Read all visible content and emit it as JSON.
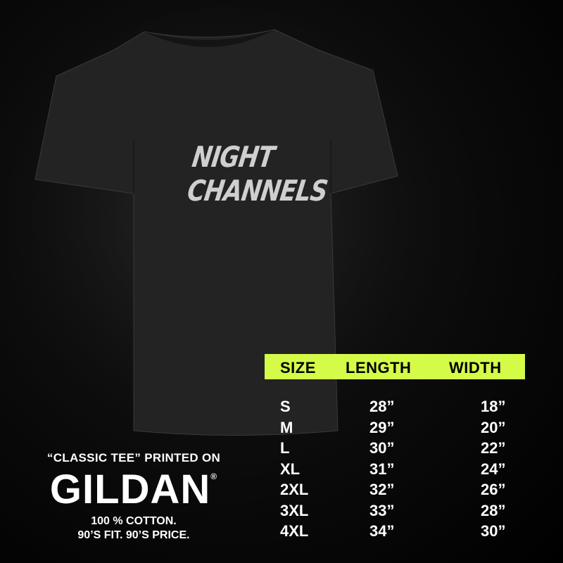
{
  "product": {
    "brand_print": "NIGHT CHANNELS",
    "shirt_color": "#222222"
  },
  "accent_color": "#d5fb49",
  "size_chart": {
    "headers": [
      "SIZE",
      "LENGTH",
      "WIDTH"
    ],
    "rows": [
      {
        "size": "S",
        "length": "28”",
        "width": "18”"
      },
      {
        "size": "M",
        "length": "29”",
        "width": "20”"
      },
      {
        "size": "L",
        "length": "30”",
        "width": "22”"
      },
      {
        "size": "XL",
        "length": "31”",
        "width": "24”"
      },
      {
        "size": "2XL",
        "length": "32”",
        "width": "26”"
      },
      {
        "size": "3XL",
        "length": "33”",
        "width": "28”"
      },
      {
        "size": "4XL",
        "length": "34”",
        "width": "30”"
      }
    ]
  },
  "promo": {
    "tagline": "“CLASSIC TEE” PRINTED ON",
    "logo": "GILDAN",
    "registered": "®",
    "line1": "100 % COTTON.",
    "line2": "90’S FIT. 90’S PRICE."
  }
}
